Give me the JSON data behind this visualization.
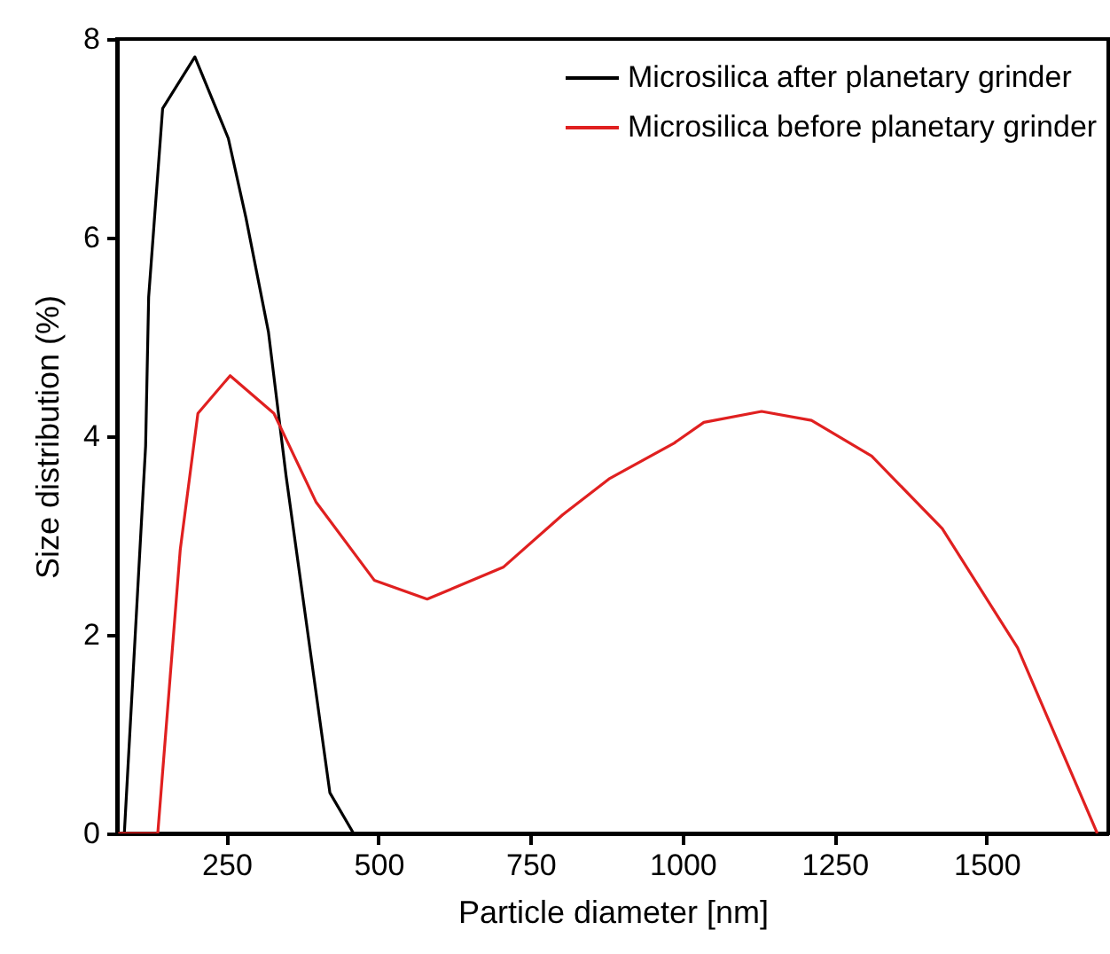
{
  "chart_data": {
    "type": "line",
    "xlabel": "Particle diameter [nm]",
    "ylabel": "Size distribution (%)",
    "xlim": [
      70,
      1700
    ],
    "xticks": [
      250,
      500,
      750,
      1000,
      1250,
      1500
    ],
    "ylim": [
      0,
      8
    ],
    "yticks": [
      0,
      2,
      4,
      6,
      8
    ],
    "grid": false,
    "legend": "top right",
    "marker": "none",
    "line_style": "solid",
    "series": [
      {
        "name": "Microsilica after planetary grinder",
        "color": "#000000",
        "x": [
          72,
          82,
          117,
          122,
          145,
          198,
          253,
          282,
          319,
          348,
          420,
          459
        ],
        "values": [
          0,
          0,
          3.9,
          5.4,
          7.3,
          7.82,
          7.0,
          6.2,
          5.05,
          3.6,
          0.41,
          0
        ]
      },
      {
        "name": "Microsilica before planetary grinder",
        "color": "#e02020",
        "x": [
          72,
          137,
          174,
          203,
          256,
          328,
          397,
          493,
          580,
          705,
          803,
          879,
          986,
          1035,
          1130,
          1212,
          1311,
          1427,
          1551,
          1682
        ],
        "values": [
          0,
          0,
          2.86,
          4.23,
          4.61,
          4.23,
          3.34,
          2.55,
          2.36,
          2.68,
          3.21,
          3.57,
          3.93,
          4.14,
          4.25,
          4.16,
          3.8,
          3.07,
          1.87,
          0
        ]
      }
    ]
  }
}
